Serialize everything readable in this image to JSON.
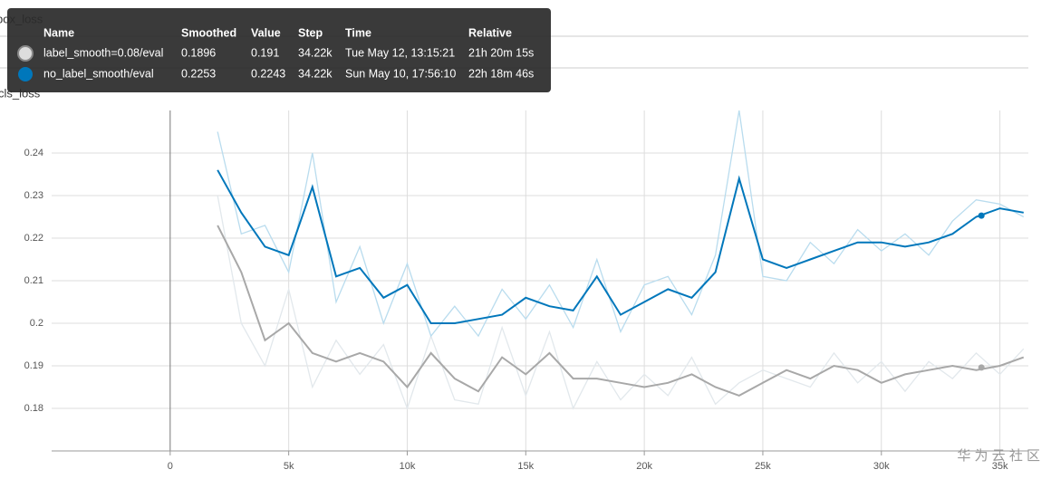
{
  "chart_data": {
    "type": "line",
    "panels": [
      "box_loss",
      "cls_loss"
    ],
    "x": [
      2000,
      3000,
      4000,
      5000,
      6000,
      7000,
      8000,
      9000,
      10000,
      11000,
      12000,
      13000,
      14000,
      15000,
      16000,
      17000,
      18000,
      19000,
      20000,
      21000,
      22000,
      23000,
      24000,
      25000,
      26000,
      27000,
      28000,
      29000,
      30000,
      31000,
      32000,
      33000,
      34000,
      35000,
      36000
    ],
    "series": [
      {
        "name": "label_smooth=0.08/eval",
        "color": "#a8a8a8",
        "raw_color": "#e2e8ec",
        "values": [
          0.223,
          0.212,
          0.196,
          0.2,
          0.193,
          0.191,
          0.193,
          0.191,
          0.185,
          0.193,
          0.187,
          0.184,
          0.192,
          0.188,
          0.193,
          0.187,
          0.187,
          0.186,
          0.185,
          0.186,
          0.188,
          0.185,
          0.183,
          0.186,
          0.189,
          0.187,
          0.19,
          0.189,
          0.186,
          0.188,
          0.189,
          0.19,
          0.189,
          0.19,
          0.192
        ],
        "raw": [
          0.23,
          0.2,
          0.19,
          0.208,
          0.185,
          0.196,
          0.188,
          0.195,
          0.18,
          0.197,
          0.182,
          0.181,
          0.199,
          0.183,
          0.198,
          0.18,
          0.191,
          0.182,
          0.188,
          0.183,
          0.192,
          0.181,
          0.186,
          0.189,
          0.187,
          0.185,
          0.193,
          0.186,
          0.191,
          0.184,
          0.191,
          0.187,
          0.193,
          0.188,
          0.194
        ]
      },
      {
        "name": "no_label_smooth/eval",
        "color": "#0077bb",
        "raw_color": "#b9dcee",
        "values": [
          0.236,
          0.226,
          0.218,
          0.216,
          0.232,
          0.211,
          0.213,
          0.206,
          0.209,
          0.2,
          0.2,
          0.201,
          0.202,
          0.206,
          0.204,
          0.203,
          0.211,
          0.202,
          0.205,
          0.208,
          0.206,
          0.212,
          0.234,
          0.215,
          0.213,
          0.215,
          0.217,
          0.219,
          0.219,
          0.218,
          0.219,
          0.221,
          0.225,
          0.227,
          0.226
        ],
        "raw": [
          0.245,
          0.221,
          0.223,
          0.212,
          0.24,
          0.205,
          0.218,
          0.2,
          0.214,
          0.197,
          0.204,
          0.197,
          0.208,
          0.201,
          0.209,
          0.199,
          0.215,
          0.198,
          0.209,
          0.211,
          0.202,
          0.216,
          0.25,
          0.211,
          0.21,
          0.219,
          0.214,
          0.222,
          0.217,
          0.221,
          0.216,
          0.224,
          0.229,
          0.228,
          0.225
        ]
      }
    ],
    "xlim": [
      -5000,
      36200
    ],
    "ylim": [
      0.17,
      0.25
    ],
    "xticks": [
      0,
      {
        "value": 5000,
        "label": "5k"
      },
      {
        "value": 10000,
        "label": "10k"
      },
      {
        "value": 15000,
        "label": "15k"
      },
      {
        "value": 20000,
        "label": "20k"
      },
      {
        "value": 25000,
        "label": "25k"
      },
      {
        "value": 30000,
        "label": "30k"
      },
      {
        "value": 35000,
        "label": "35k"
      }
    ],
    "yticks": [
      0.18,
      0.19,
      0.2,
      0.21,
      0.22,
      0.23,
      0.24
    ],
    "grid": true
  },
  "tooltip": {
    "columns": [
      "Name",
      "Smoothed",
      "Value",
      "Step",
      "Time",
      "Relative"
    ],
    "rows": [
      {
        "smoothed": 0.1896,
        "value": 0.191,
        "step": {
          "value": 34220,
          "label": "34.22k"
        },
        "time": "Tue May 12, 13:15:21",
        "relative": "21h 20m 15s"
      },
      {
        "smoothed": 0.2253,
        "value": 0.2243,
        "step": {
          "value": 34220,
          "label": "34.22k"
        },
        "time": "Sun May 10, 17:56:10",
        "relative": "22h 18m 46s"
      }
    ]
  },
  "watermark": "华 为 云 社 区"
}
